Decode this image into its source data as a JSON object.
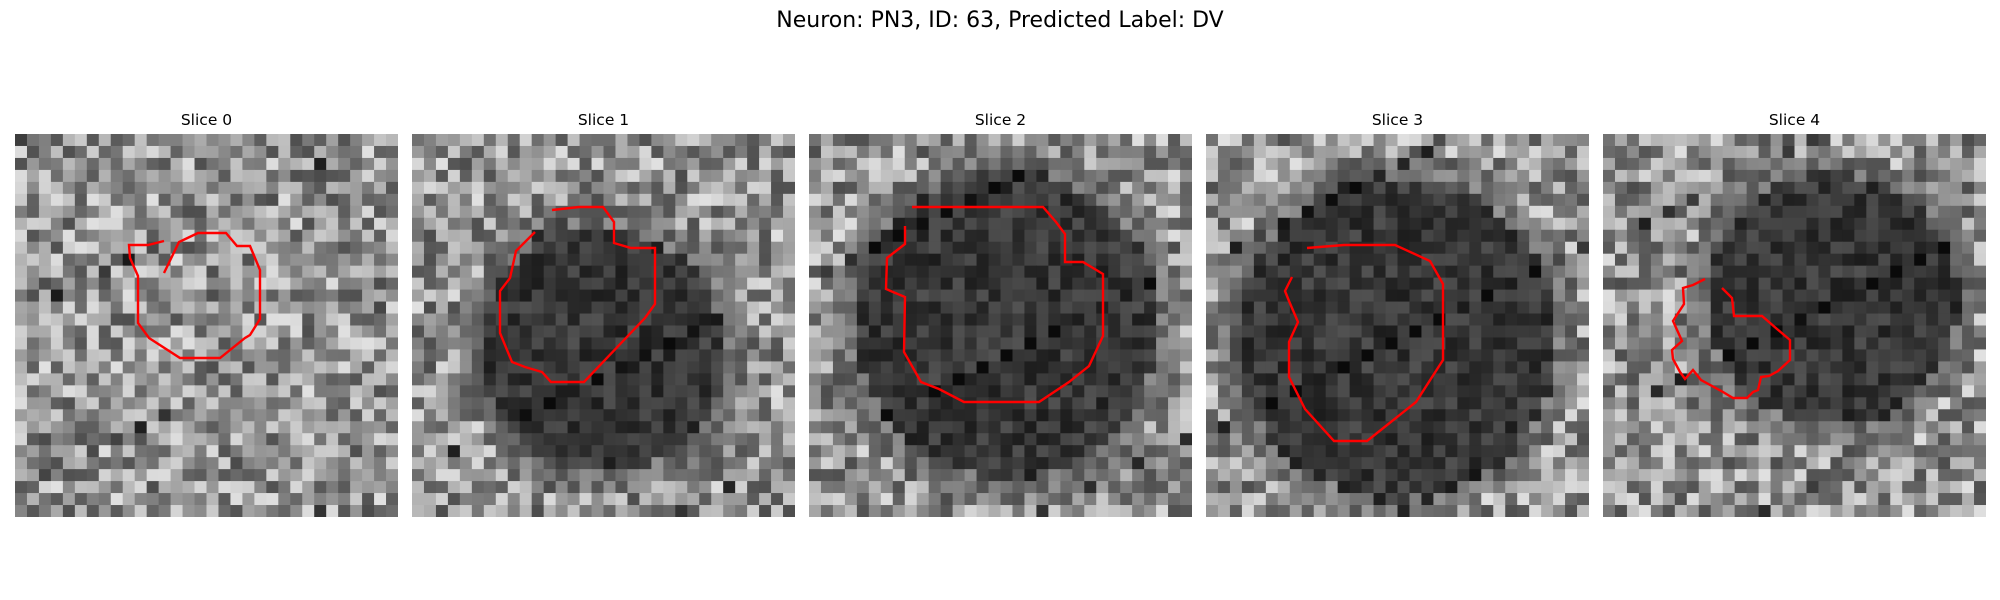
{
  "figure": {
    "suptitle": "Neuron: PN3, ID: 63, Predicted Label: DV",
    "colors": {
      "contour": "#ff0000",
      "background": "#ffffff",
      "colormap": "gray"
    }
  },
  "panels": [
    {
      "title": "Slice 0",
      "seed": 11,
      "dark_blob": false
    },
    {
      "title": "Slice 1",
      "seed": 23,
      "dark_blob": true
    },
    {
      "title": "Slice 2",
      "seed": 37,
      "dark_blob": true
    },
    {
      "title": "Slice 3",
      "seed": 41,
      "dark_blob": true
    },
    {
      "title": "Slice 4",
      "seed": 59,
      "dark_blob": true
    }
  ]
}
